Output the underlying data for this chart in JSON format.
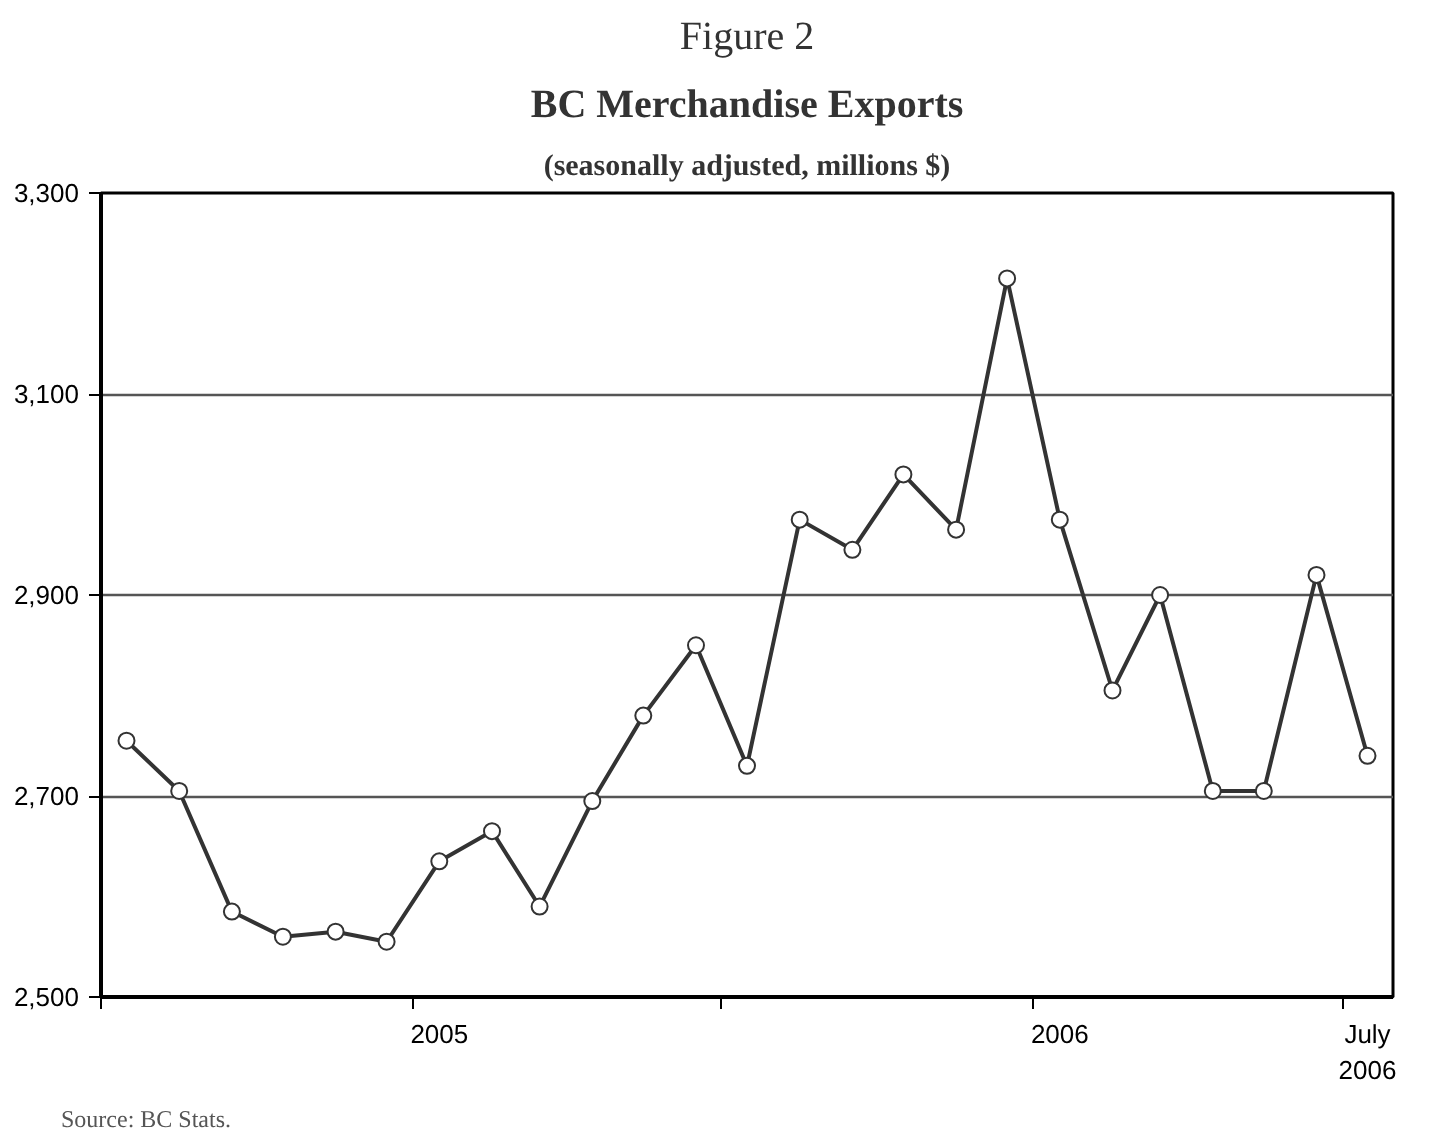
{
  "chart_data": {
    "type": "line",
    "title": "BC Merchandise Exports",
    "subtitle": "(seasonally adjusted, millions $)",
    "annotations": [
      "Figure 2",
      "Source:  BC Stats."
    ],
    "x": [
      "2004-07",
      "2004-08",
      "2004-09",
      "2004-10",
      "2004-11",
      "2004-12",
      "2005-01",
      "2005-02",
      "2005-03",
      "2005-04",
      "2005-05",
      "2005-06",
      "2005-07",
      "2005-08",
      "2005-09",
      "2005-10",
      "2005-11",
      "2005-12",
      "2006-01",
      "2006-02",
      "2006-03",
      "2006-04",
      "2006-05",
      "2006-06",
      "2006-07"
    ],
    "series": [
      {
        "color": "#333333",
        "values": [
          2755,
          2705,
          2585,
          2560,
          2565,
          2555,
          2635,
          2665,
          2590,
          2695,
          2780,
          2850,
          2730,
          2975,
          2945,
          3020,
          2965,
          3215,
          2975,
          2805,
          2900,
          2705,
          2705,
          2920,
          2740
        ]
      }
    ],
    "xlim": [
      "2004-06-16",
      "2006-07-16"
    ],
    "xticks": [
      {
        "value": "2004-06-16",
        "label": null
      },
      {
        "value": "2004-12-16",
        "label": null
      },
      {
        "value": "2005-01",
        "label": "2005"
      },
      {
        "value": "2005-06-16",
        "label": null
      },
      {
        "value": "2005-12-16",
        "label": null
      },
      {
        "value": "2006-01",
        "label": "2006"
      },
      {
        "value": "2006-06-16",
        "label": null
      },
      {
        "value": "2006-07",
        "label": "July\n2006"
      }
    ],
    "ylim": [
      2500,
      3300
    ],
    "yticks": [
      {
        "value": 2500,
        "label": "2,500"
      },
      {
        "value": 2700,
        "label": "2,700"
      },
      {
        "value": 2900,
        "label": "2,900"
      },
      {
        "value": 3100,
        "label": "3,100"
      },
      {
        "value": 3300,
        "label": "3,300"
      }
    ],
    "grid": "y",
    "marker": "circle",
    "line_style": "solid"
  }
}
